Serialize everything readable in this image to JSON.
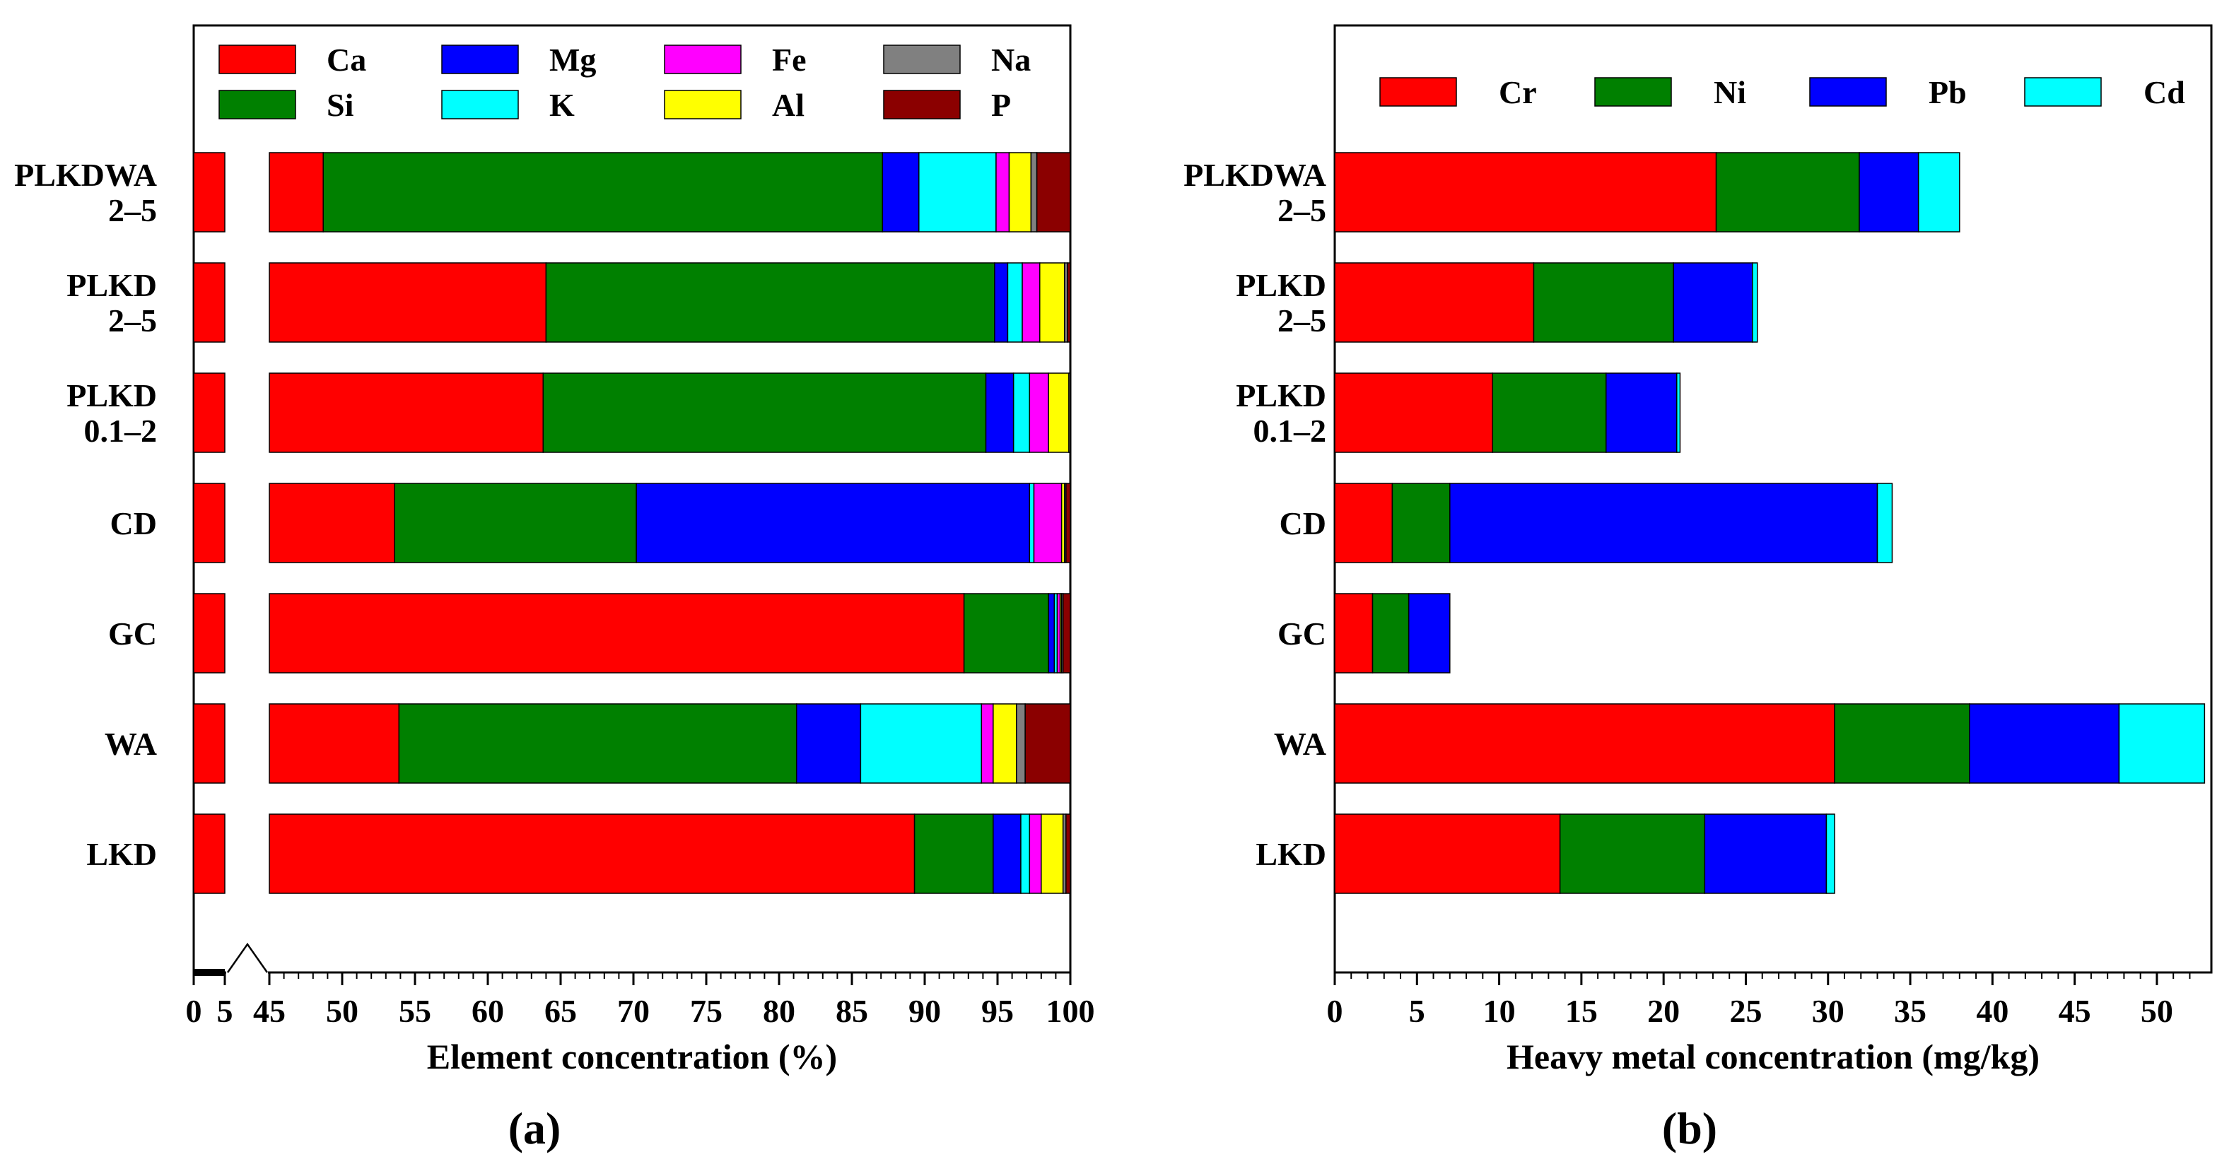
{
  "figure": {
    "panel_a_label": "(a)",
    "panel_b_label": "(b)"
  },
  "colors": {
    "Ca": "#ff0000",
    "Si": "#008000",
    "Mg": "#0000ff",
    "K": "#00ffff",
    "Fe": "#ff00ff",
    "Al": "#ffff00",
    "Na": "#808080",
    "P": "#8b0000",
    "Cr": "#ff0000",
    "Ni": "#008000",
    "Pb": "#0000ff",
    "Cd": "#00ffff"
  },
  "chart_data": [
    {
      "id": "a",
      "type": "bar",
      "orientation": "horizontal",
      "stacked": true,
      "broken_axis": {
        "break_from": 5,
        "break_to": 45
      },
      "xlabel": "Element concentration (%)",
      "xlim": [
        0,
        100
      ],
      "xticks": [
        "0",
        "5",
        "45",
        "50",
        "55",
        "60",
        "65",
        "70",
        "75",
        "80",
        "85",
        "90",
        "95",
        "100"
      ],
      "xtick_values": [
        0,
        5,
        45,
        50,
        55,
        60,
        65,
        70,
        75,
        80,
        85,
        90,
        95,
        100
      ],
      "legend": [
        "Ca",
        "Mg",
        "Fe",
        "Na",
        "Si",
        "K",
        "Al",
        "P"
      ],
      "legend_placement": "top",
      "categories": [
        [
          "PLKDWA",
          "2–5"
        ],
        [
          "PLKD",
          "2–5"
        ],
        [
          "PLKD",
          "0.1–2"
        ],
        [
          "CD"
        ],
        [
          "GC"
        ],
        [
          "WA"
        ],
        [
          "LKD"
        ]
      ],
      "series": [
        {
          "name": "Ca",
          "values": [
            48.7,
            64.0,
            63.8,
            53.6,
            92.7,
            53.9,
            89.3
          ]
        },
        {
          "name": "Si",
          "values": [
            38.4,
            30.8,
            30.4,
            16.6,
            5.8,
            27.3,
            5.4
          ]
        },
        {
          "name": "Mg",
          "values": [
            2.5,
            0.9,
            1.9,
            27.0,
            0.4,
            4.4,
            1.9
          ]
        },
        {
          "name": "K",
          "values": [
            5.3,
            1.0,
            1.1,
            0.3,
            0.2,
            8.3,
            0.6
          ]
        },
        {
          "name": "Fe",
          "values": [
            0.9,
            1.2,
            1.3,
            1.9,
            0.2,
            0.8,
            0.8
          ]
        },
        {
          "name": "Al",
          "values": [
            1.5,
            1.7,
            1.4,
            0.2,
            0.1,
            1.6,
            1.5
          ]
        },
        {
          "name": "Na",
          "values": [
            0.4,
            0.2,
            0.1,
            0.1,
            0.1,
            0.6,
            0.2
          ]
        },
        {
          "name": "P",
          "values": [
            2.3,
            0.2,
            0.0,
            0.3,
            0.7,
            3.1,
            0.3
          ]
        }
      ]
    },
    {
      "id": "b",
      "type": "bar",
      "orientation": "horizontal",
      "stacked": true,
      "xlabel": "Heavy metal concentration (mg/kg)",
      "xlim": [
        0,
        53
      ],
      "xticks": [
        "0",
        "5",
        "10",
        "15",
        "20",
        "25",
        "30",
        "35",
        "40",
        "45",
        "50"
      ],
      "xtick_values": [
        0,
        5,
        10,
        15,
        20,
        25,
        30,
        35,
        40,
        45,
        50
      ],
      "legend": [
        "Cr",
        "Ni",
        "Pb",
        "Cd"
      ],
      "legend_placement": "top",
      "categories": [
        [
          "PLKDWA",
          "2–5"
        ],
        [
          "PLKD",
          "2–5"
        ],
        [
          "PLKD",
          "0.1–2"
        ],
        [
          "CD"
        ],
        [
          "GC"
        ],
        [
          "WA"
        ],
        [
          "LKD"
        ]
      ],
      "series": [
        {
          "name": "Cr",
          "values": [
            23.2,
            12.1,
            9.6,
            3.5,
            2.3,
            30.4,
            13.7
          ]
        },
        {
          "name": "Ni",
          "values": [
            8.7,
            8.5,
            6.9,
            3.5,
            2.2,
            8.2,
            8.8
          ]
        },
        {
          "name": "Pb",
          "values": [
            3.6,
            4.8,
            4.3,
            26.0,
            2.5,
            9.1,
            7.4
          ]
        },
        {
          "name": "Cd",
          "values": [
            2.5,
            0.3,
            0.2,
            0.9,
            0.0,
            5.2,
            0.5
          ]
        }
      ]
    }
  ]
}
